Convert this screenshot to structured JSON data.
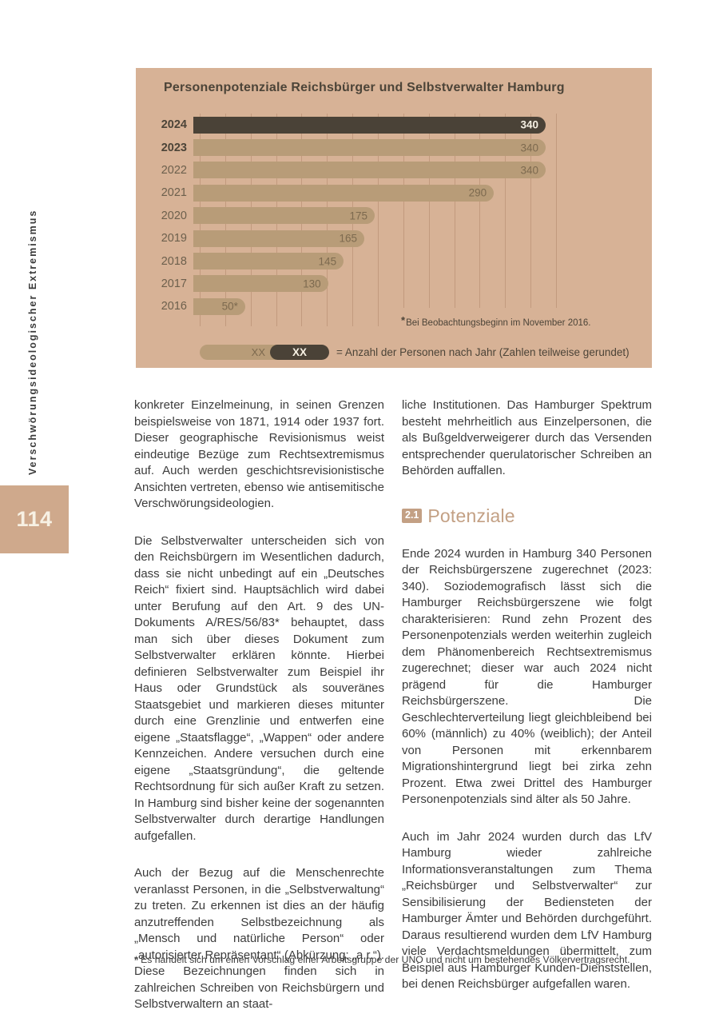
{
  "page": {
    "number": "114",
    "sidebar_label": "Verschwörungsideologischer Extremismus",
    "footnote": "* Es handelt sich um einen Vorschlag einer Arbeitsgruppe der UNO und nicht um bestehendes Völkervertragsrecht."
  },
  "chart_data": {
    "type": "bar",
    "orientation": "horizontal",
    "title": "Personenpotenziale Reichsbürger und Selbstverwalter Hamburg",
    "categories": [
      "2024",
      "2023",
      "2022",
      "2021",
      "2020",
      "2019",
      "2018",
      "2017",
      "2016"
    ],
    "values": [
      340,
      340,
      340,
      290,
      175,
      165,
      145,
      130,
      50
    ],
    "value_labels": [
      "340",
      "340",
      "340",
      "290",
      "175",
      "165",
      "145",
      "130",
      "50*"
    ],
    "bold_labels": [
      "2024",
      "2023"
    ],
    "highlight_category": "2024",
    "xlim": [
      0,
      350
    ],
    "gridline_interval": 25,
    "grid_on": true,
    "footnote_marker": "*",
    "footnote": "Bei Beobachtungsbeginn im November 2016.",
    "legend": {
      "light_label": "XX",
      "dark_label": "XX",
      "text": "= Anzahl der Personen nach Jahr (Zahlen teilweise gerundet)"
    },
    "colors": {
      "panel_bg": "#d7b296",
      "bar_light": "#b89c78",
      "bar_dark": "#4a4237",
      "grid": "#bb9276",
      "title_text": "#4c4438"
    }
  },
  "article": {
    "left_column": {
      "paragraphs": [
        "konkreter Einzelmeinung, in seinen Grenzen beispielsweise von 1871, 1914 oder 1937 fort. Dieser geographische Revisionismus weist eindeutige Bezüge zum Rechtsextremismus auf. Auch werden geschichtsrevisionistische Ansichten vertreten, ebenso wie antisemitische Verschwörungsideologien.",
        "Die Selbstverwalter unterscheiden sich von den Reichsbürgern im Wesentlichen dadurch, dass sie nicht unbedingt auf ein „Deutsches Reich“ fixiert sind. Hauptsächlich wird dabei unter Berufung auf den Art. 9 des UN-Dokuments A/RES/56/83* behauptet, dass man sich über dieses Dokument zum Selbstverwalter erklären könnte. Hierbei definieren Selbstverwalter zum Beispiel ihr Haus oder Grundstück als souveränes Staatsgebiet und markieren dieses mitunter durch eine Grenzlinie und entwerfen eine eigene „Staatsflagge“, „Wappen“ oder andere Kennzeichen. Andere versuchen durch eine eigene „Staatsgründung“, die geltende Rechtsordnung für sich außer Kraft zu setzen. In Hamburg sind bisher keine der sogenannten Selbstverwalter durch derartige Handlungen aufgefallen.",
        "Auch der Bezug auf die Menschenrechte veranlasst Personen, in die „Selbstverwaltung“ zu treten. Zu erkennen ist dies an der häufig anzutreffenden Selbstbezeichnung als „Mensch und natürliche Person“ oder „autorisierter Repräsentant“ (Abkürzung: „a.r.“). Diese Bezeichnungen finden sich in zahlreichen Schreiben von Reichsbürgern und Selbstverwaltern an staat-"
      ]
    },
    "right_column": {
      "paragraph_top": "liche Institutionen. Das Hamburger Spektrum besteht mehrheitlich aus Einzelpersonen, die als Bußgeldverweigerer durch das Versenden entsprechender querulatorischer Schreiben an Behörden auffallen.",
      "section": {
        "number": "2.1",
        "title": "Potenziale"
      },
      "paragraphs": [
        "Ende 2024 wurden in Hamburg 340 Personen der Reichsbürgerszene zugerechnet (2023: 340). Soziodemografisch lässt sich die Hamburger Reichsbürgerszene wie folgt charakterisieren: Rund zehn Prozent des Personenpotenzials werden weiterhin zugleich dem Phänomenbereich Rechtsextremismus zugerechnet; dieser war auch 2024 nicht prägend für die Hamburger Reichsbürgerszene. Die Geschlechterverteilung liegt gleichbleibend bei 60% (männlich) zu 40% (weiblich); der Anteil von Personen mit erkennbarem Migrationshintergrund liegt bei zirka zehn Prozent. Etwa zwei Drittel des Hamburger Personenpotenzials sind älter als 50 Jahre.",
        "Auch im Jahr 2024 wurden durch das LfV Hamburg wieder zahlreiche Informationsveranstaltungen zum Thema „Reichsbürger und Selbstverwalter“ zur Sensibilisierung der Bediensteten der Hamburger Ämter und Behörden durchgeführt. Daraus resultierend wurden dem LfV Hamburg viele Verdachtsmeldungen übermittelt, zum Beispiel aus Hamburger Kunden-Dienststellen, bei denen Reichsbürger aufgefallen waren."
      ]
    }
  }
}
